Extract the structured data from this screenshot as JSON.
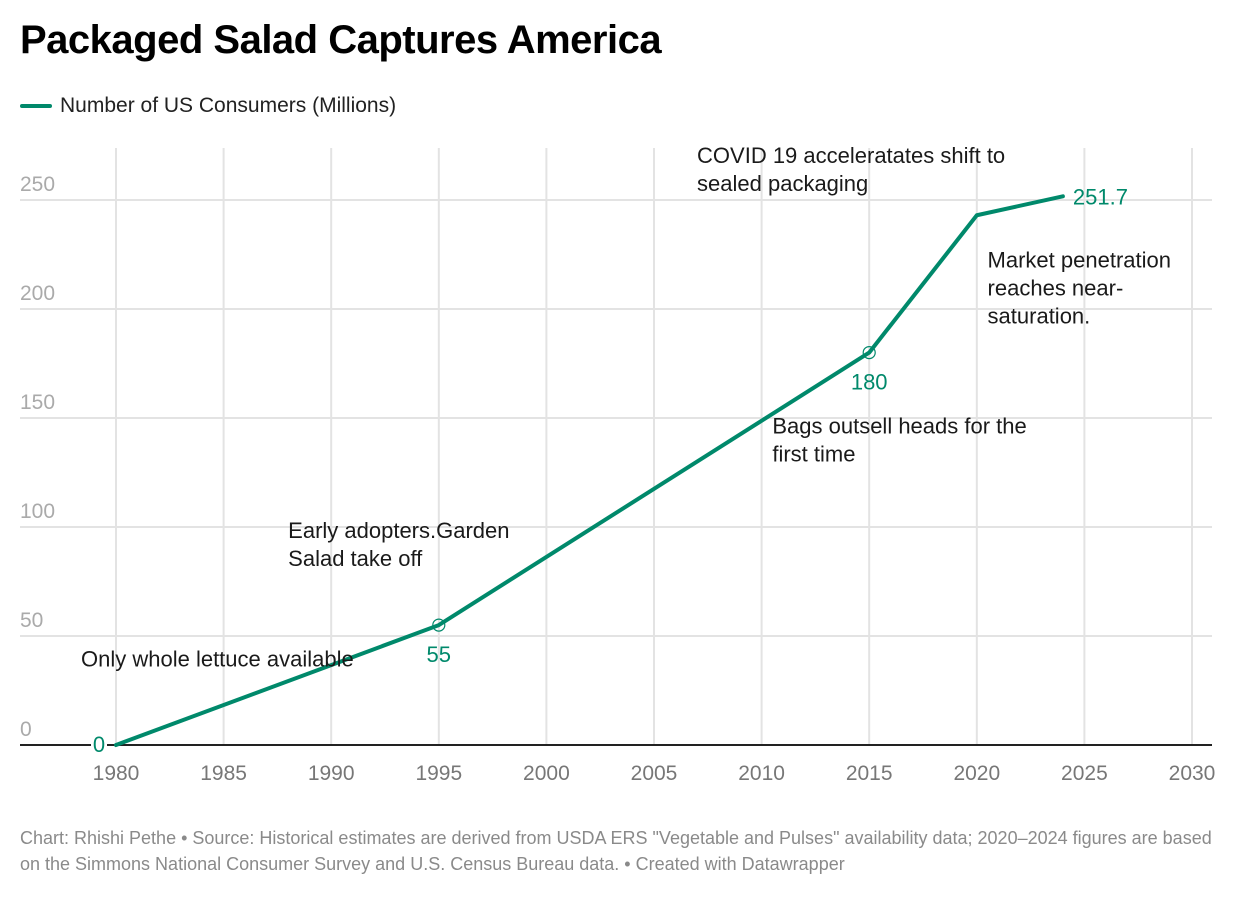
{
  "chart_data": {
    "type": "line",
    "title": "Packaged Salad Captures America",
    "series": [
      {
        "name": "Number of US Consumers (Millions)",
        "color": "#00896b",
        "x": [
          1980,
          1995,
          2015,
          2020,
          2024
        ],
        "y": [
          0,
          55,
          180,
          243,
          251.7
        ]
      }
    ],
    "data_labels": [
      {
        "x": 1980,
        "y": 0,
        "text": "0"
      },
      {
        "x": 1995,
        "y": 55,
        "text": "55"
      },
      {
        "x": 2015,
        "y": 180,
        "text": "180"
      },
      {
        "x": 2024,
        "y": 251.7,
        "text": "251.7"
      }
    ],
    "annotations": [
      {
        "x": 1980,
        "y": 36,
        "lines": [
          "Only whole lettuce available"
        ]
      },
      {
        "x": 1988,
        "y": 95,
        "lines": [
          "Early adopters.Garden",
          "Salad take off"
        ]
      },
      {
        "x": 2010.5,
        "y": 143,
        "lines": [
          "Bags outsell heads for the",
          "first time"
        ]
      },
      {
        "x": 2007,
        "y": 267,
        "lines": [
          "COVID 19 acceleratates shift to",
          "sealed packaging"
        ]
      },
      {
        "x": 2020.5,
        "y": 219,
        "lines": [
          "Market penetration",
          "reaches near-",
          "saturation."
        ]
      }
    ],
    "xticks": [
      1980,
      1985,
      1990,
      1995,
      2000,
      2005,
      2010,
      2015,
      2020,
      2025,
      2030
    ],
    "yticks": [
      0,
      50,
      100,
      150,
      200,
      250
    ],
    "xlim": [
      1975.5,
      2030.5
    ],
    "ylim": [
      0,
      250
    ],
    "grid": true,
    "legend_position": "top-left"
  },
  "footer": "Chart: Rhishi Pethe • Source: Historical estimates are derived from USDA ERS \"Vegetable and Pulses\" availability data; 2020–2024 figures are based on the Simmons National Consumer Survey and U.S. Census Bureau data. • Created with Datawrapper"
}
